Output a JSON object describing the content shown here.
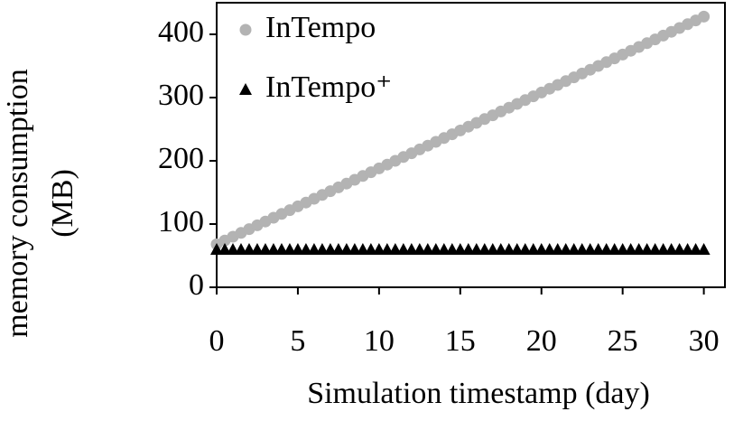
{
  "chart_data": {
    "type": "scatter",
    "xlabel": "Simulation timestamp (day)",
    "ylabel": [
      "memory consumption",
      "(MB)"
    ],
    "xlim": [
      0,
      31.3
    ],
    "xticks": [
      0,
      5,
      10,
      15,
      20,
      25,
      30
    ],
    "ylim": [
      0,
      450
    ],
    "yticks": [
      0,
      100,
      200,
      300,
      400
    ],
    "legend": "upper left",
    "x": [
      0,
      0.5,
      1,
      1.5,
      2,
      2.5,
      3,
      3.5,
      4,
      4.5,
      5,
      5.5,
      6,
      6.5,
      7,
      7.5,
      8,
      8.5,
      9,
      9.5,
      10,
      10.5,
      11,
      11.5,
      12,
      12.5,
      13,
      13.5,
      14,
      14.5,
      15,
      15.5,
      16,
      16.5,
      17,
      17.5,
      18,
      18.5,
      19,
      19.5,
      20,
      20.5,
      21,
      21.5,
      22,
      22.5,
      23,
      23.5,
      24,
      24.5,
      25,
      25.5,
      26,
      26.5,
      27,
      27.5,
      28,
      28.5,
      29,
      29.5,
      30
    ],
    "series": [
      {
        "name": "InTempo",
        "color": "#b3b3b3",
        "marker": "circle",
        "values": [
          68,
          74,
          80,
          86,
          92,
          98,
          104,
          110,
          116,
          122,
          128,
          134,
          140,
          146,
          152,
          158,
          164,
          170,
          176,
          182,
          188,
          194,
          200,
          206,
          212,
          218,
          224,
          230,
          236,
          242,
          248,
          254,
          260,
          266,
          272,
          278,
          284,
          290,
          296,
          302,
          308,
          314,
          320,
          326,
          332,
          338,
          344,
          350,
          356,
          362,
          368,
          374,
          380,
          386,
          392,
          398,
          404,
          410,
          416,
          422,
          428
        ]
      },
      {
        "name": "InTempo⁺",
        "color": "#000000",
        "marker": "triangle",
        "values": [
          60,
          60,
          60,
          60,
          60,
          60,
          60,
          60,
          60,
          60,
          60,
          60,
          60,
          60,
          60,
          60,
          60,
          60,
          60,
          60,
          60,
          60,
          60,
          60,
          60,
          60,
          60,
          60,
          60,
          60,
          60,
          60,
          60,
          60,
          60,
          60,
          60,
          60,
          60,
          60,
          60,
          60,
          60,
          60,
          60,
          60,
          60,
          60,
          60,
          60,
          60,
          60,
          60,
          60,
          60,
          60,
          60,
          60,
          60,
          60,
          60
        ]
      }
    ]
  }
}
